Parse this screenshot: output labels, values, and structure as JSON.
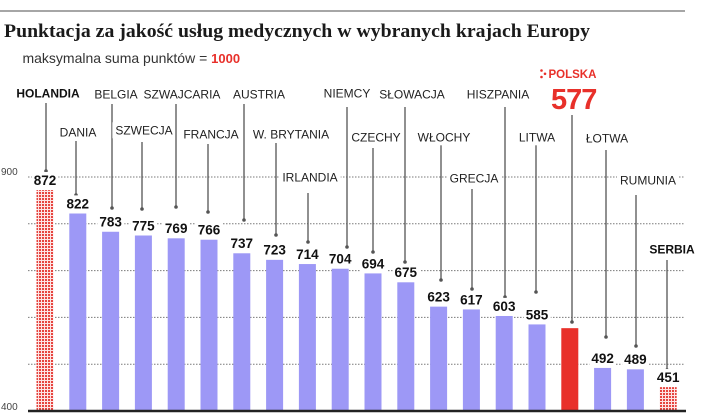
{
  "header": {
    "title": "Punktacja za jakość usług medycznych w wybranych krajach Europy",
    "subtitle_prefix": "maksymalna suma punktów = ",
    "subtitle_value": "1000"
  },
  "y_axis": {
    "ticks": [
      "400",
      "900"
    ]
  },
  "colors": {
    "bar": "#9d98f6",
    "highlight": "#e8302a",
    "pattern_dot": "#e6453f",
    "pattern_bg": "#fde4e4",
    "accent_text": "#e8302a",
    "top_rule": "#888888",
    "baseline": "#222222"
  },
  "chart_data": {
    "type": "bar",
    "title": "Punktacja za jakość usług medycznych w wybranych krajach Europy",
    "subtitle": "maksymalna suma punktów = 1000",
    "categories": [
      "HOLANDIA",
      "DANIA",
      "BELGIA",
      "SZWECJA",
      "SZWAJCARIA",
      "FRANCJA",
      "AUSTRIA",
      "W. BRYTANIA",
      "IRLANDIA",
      "NIEMCY",
      "CZECHY",
      "SŁOWACJA",
      "WŁOCHY",
      "GRECJA",
      "HISZPANIA",
      "LITWA",
      "POLSKA",
      "ŁOTWA",
      "RUMUNIA",
      "SERBIA"
    ],
    "values": [
      872,
      822,
      783,
      775,
      769,
      766,
      737,
      723,
      714,
      704,
      694,
      675,
      623,
      617,
      603,
      585,
      577,
      492,
      489,
      451
    ],
    "point_styles": [
      "pattern",
      "normal",
      "normal",
      "normal",
      "normal",
      "normal",
      "normal",
      "normal",
      "normal",
      "normal",
      "normal",
      "normal",
      "normal",
      "normal",
      "normal",
      "normal",
      "highlight",
      "normal",
      "normal",
      "pattern"
    ],
    "bold_labels": [
      "HOLANDIA",
      "SERBIA"
    ],
    "callout_category": "POLSKA",
    "xlabel": "",
    "ylabel": "",
    "ylim": [
      400,
      900
    ],
    "yticks": [
      400,
      900
    ],
    "grid": true,
    "grid_step": 100,
    "max_possible_score": 1000
  }
}
